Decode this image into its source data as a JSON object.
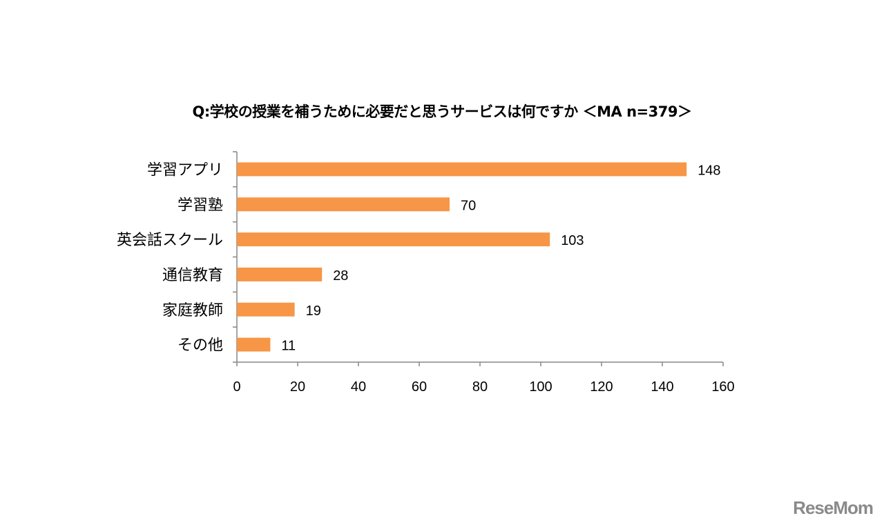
{
  "chart_data": {
    "type": "bar",
    "orientation": "horizontal",
    "title": "Q:学校の授業を補うために必要だと思うサービスは何ですか ＜MA n=379＞",
    "categories": [
      "学習アプリ",
      "学習塾",
      "英会話スクール",
      "通信教育",
      "家庭教師",
      "その他"
    ],
    "values": [
      148,
      70,
      103,
      28,
      19,
      11
    ],
    "xlim": [
      0,
      160
    ],
    "xticks": [
      0,
      20,
      40,
      60,
      80,
      100,
      120,
      140,
      160
    ],
    "grid": false,
    "data_labels": true,
    "bar_color": "#F79646"
  },
  "watermark": "ReseMom"
}
